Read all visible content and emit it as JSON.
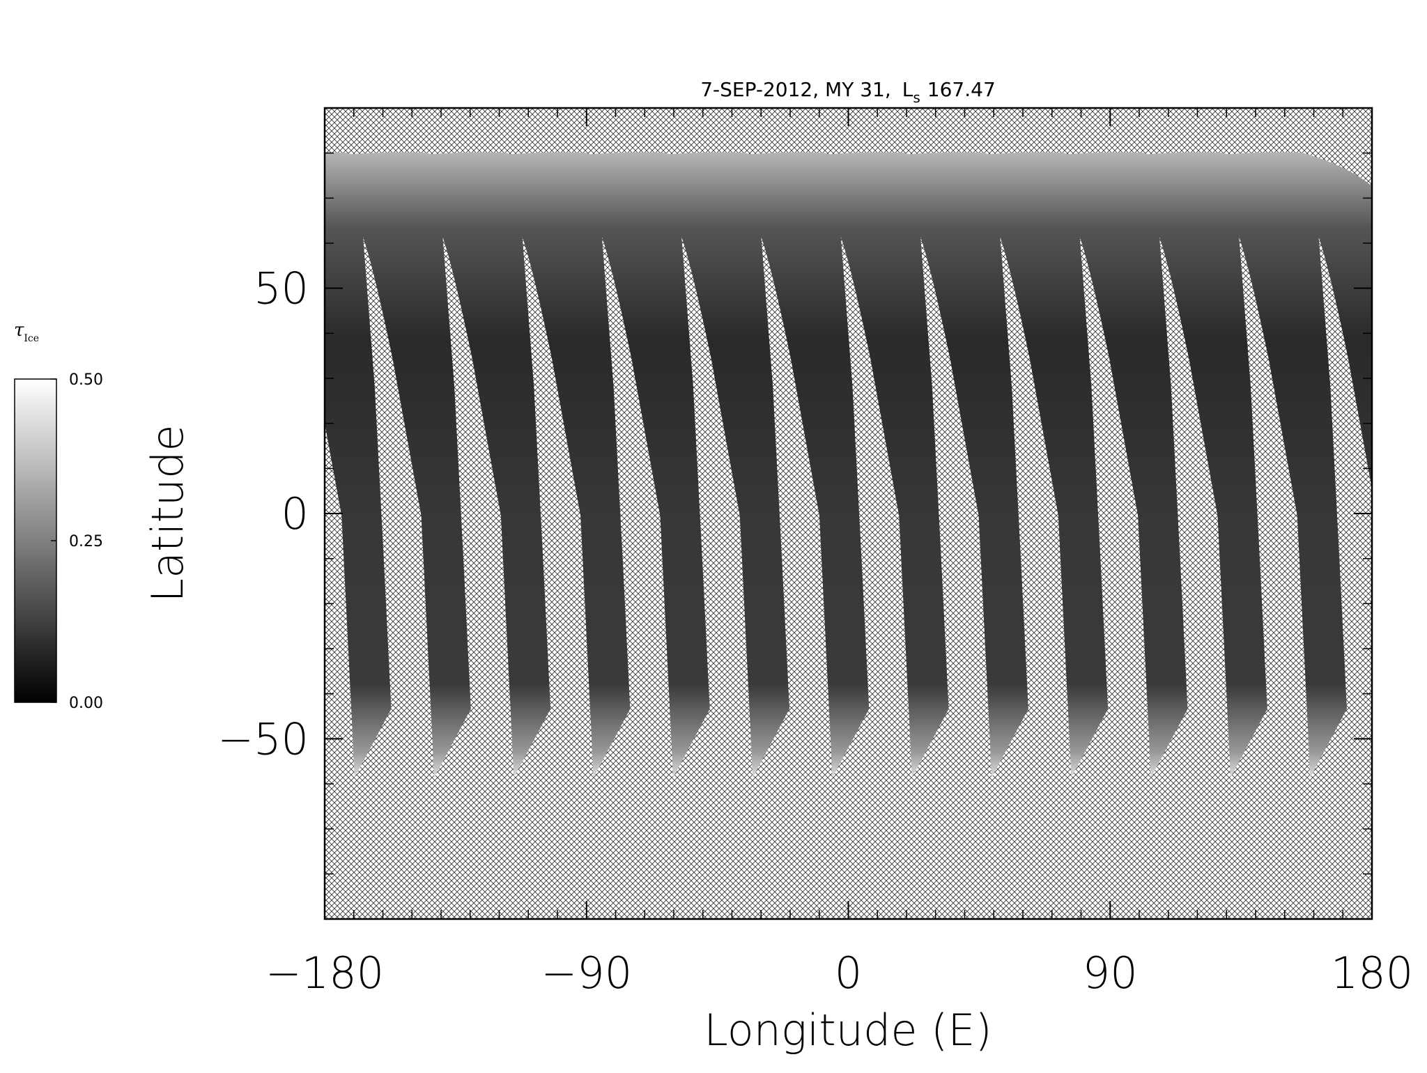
{
  "chart_data": {
    "type": "swath-map",
    "title": "7-SEP-2012, MY 31,",
    "title_symbol": "L",
    "title_symbol_subscript": "s",
    "title_value": 167.47,
    "xlabel": "Longitude (E)",
    "ylabel": "Latitude",
    "xlim": [
      -180,
      180
    ],
    "ylim": [
      -90,
      90
    ],
    "xticks": [
      {
        "value": -180,
        "label": "−180"
      },
      {
        "value": -90,
        "label": "−90"
      },
      0,
      90,
      180
    ],
    "yticks": [
      {
        "value": -50,
        "label": "−50"
      },
      0,
      50
    ],
    "xminorticks": [
      -170,
      -160,
      -150,
      -140,
      -130,
      -120,
      -110,
      -100,
      -80,
      -70,
      -60,
      -50,
      -40,
      -30,
      -20,
      -10,
      10,
      20,
      30,
      40,
      50,
      60,
      70,
      80,
      100,
      110,
      120,
      130,
      140,
      150,
      160,
      170
    ],
    "yminorticks": [
      -80,
      -70,
      -60,
      -40,
      -30,
      -20,
      -10,
      10,
      20,
      30,
      40,
      60,
      70,
      80
    ],
    "colorbar": {
      "label": "τ",
      "label_subscript": "Ice",
      "lim": [
        0,
        0.5
      ],
      "ticks": [
        {
          "value": 0,
          "label": "0.00"
        },
        {
          "value": 0.25,
          "label": "0.25"
        },
        {
          "value": 0.5,
          "label": "0.50"
        }
      ],
      "colors": [
        "#000000",
        "#ffffff"
      ]
    }
  }
}
